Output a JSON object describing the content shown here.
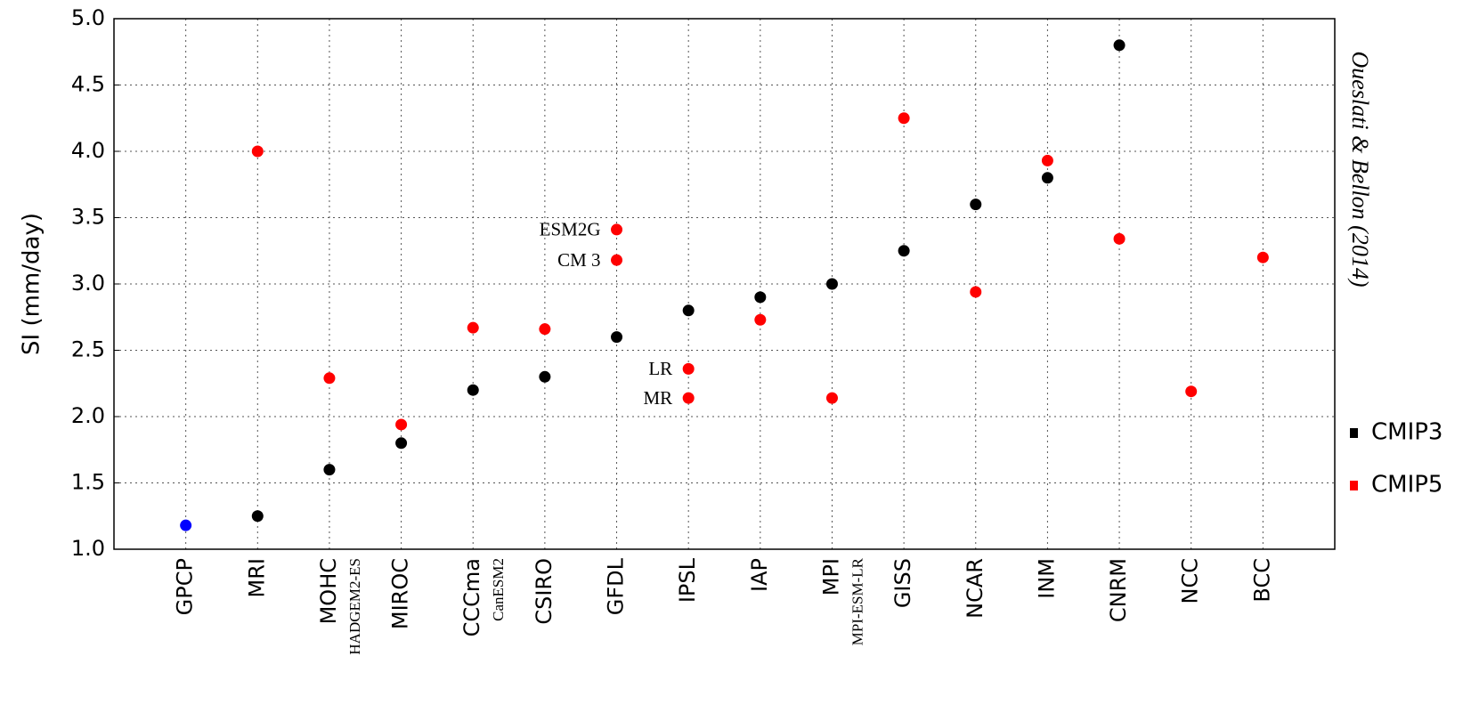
{
  "chart_data": {
    "type": "scatter",
    "y_label": "SI (mm/day)",
    "side_text": "Oueslati & Bellon (2014)",
    "categories": [
      "GPCP",
      "MRI",
      "MOHC",
      "MIROC",
      "CCCma",
      "CSIRO",
      "GFDL",
      "IPSL",
      "IAP",
      "MPI",
      "GISS",
      "NCAR",
      "INM",
      "CNRM",
      "NCC",
      "BCC"
    ],
    "category_sublabels": [
      null,
      null,
      "HADGEM2-ES",
      null,
      "CanESM2",
      null,
      null,
      null,
      null,
      "MPI-ESM-LR",
      null,
      null,
      null,
      null,
      null,
      null
    ],
    "ylim": [
      1,
      5
    ],
    "yticks": [
      {
        "value": 1,
        "label": "1.0"
      },
      1.5,
      {
        "value": 2,
        "label": "2.0"
      },
      2.5,
      {
        "value": 3,
        "label": "3.0"
      },
      3.5,
      {
        "value": 4,
        "label": "4.0"
      },
      4.5,
      {
        "value": 5,
        "label": "5.0"
      }
    ],
    "grid": true,
    "legend": "right",
    "series": [
      {
        "color": "#0000ff",
        "x": [
          "GPCP"
        ],
        "values": [
          1.18
        ]
      },
      {
        "name": "CMIP3",
        "color": "#000000",
        "x": [
          "MRI",
          "MOHC",
          "MIROC",
          "CCCma",
          "CSIRO",
          "GFDL",
          "IPSL",
          "IAP",
          "MPI",
          "GISS",
          "NCAR",
          "INM",
          "CNRM"
        ],
        "values": [
          1.25,
          1.6,
          1.8,
          2.2,
          2.3,
          2.6,
          2.8,
          2.9,
          3.0,
          3.25,
          3.6,
          3.8,
          4.8
        ]
      },
      {
        "name": "CMIP5",
        "color": "#ff0000",
        "x": [
          "MRI",
          "MOHC",
          "MIROC",
          "CCCma",
          "CSIRO",
          "GFDL",
          "GFDL",
          "IPSL",
          "IPSL",
          "IAP",
          "MPI",
          "GISS",
          "NCAR",
          "INM",
          "CNRM",
          "NCC",
          "BCC"
        ],
        "values": [
          4.0,
          2.29,
          1.94,
          2.67,
          2.66,
          3.41,
          3.18,
          2.36,
          2.14,
          2.73,
          2.14,
          4.25,
          2.94,
          3.93,
          3.34,
          2.19,
          3.2
        ],
        "point_labels": [
          null,
          null,
          null,
          null,
          null,
          "ESM2G",
          "CM 3",
          "LR",
          "MR",
          null,
          null,
          null,
          null,
          null,
          null,
          null,
          null
        ]
      }
    ]
  }
}
